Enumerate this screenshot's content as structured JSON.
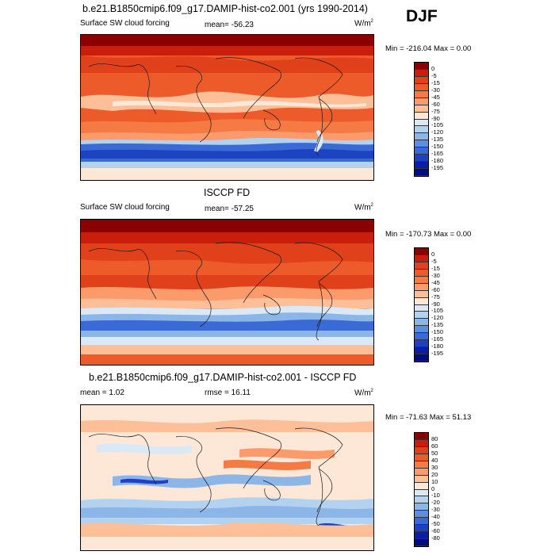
{
  "season": "DJF",
  "panels": [
    {
      "title": "b.e21.B1850cmip6.f09_g17.DAMIP-hist-co2.001 (yrs 1990-2014)",
      "left_label": "Surface SW cloud forcing",
      "center_label": "mean= -56.23",
      "units": "W/m",
      "units_sup": "2",
      "minmax": "Min = -216.04 Max =   0.00",
      "colorbar": {
        "levels": [
          "0",
          "-5",
          "-15",
          "-30",
          "-45",
          "-60",
          "-75",
          "-90",
          "-105",
          "-120",
          "-135",
          "-150",
          "-165",
          "-180",
          "-195"
        ],
        "colors": [
          "#8b0000",
          "#c81e0b",
          "#e0401a",
          "#ee5b2a",
          "#f57a44",
          "#fb9a6a",
          "#fdbf98",
          "#fde8d8",
          "#dbe9f6",
          "#b3d2f0",
          "#8cb5e8",
          "#5c8fe0",
          "#3a6ad6",
          "#1d42c2",
          "#0a1ea8",
          "#000d80"
        ]
      }
    },
    {
      "title": "ISCCP FD",
      "left_label": "Surface SW cloud forcing",
      "center_label": "mean= -57.25",
      "units": "W/m",
      "units_sup": "2",
      "minmax": "Min = -170.73 Max =   0.00",
      "colorbar": {
        "levels": [
          "0",
          "-5",
          "-15",
          "-30",
          "-45",
          "-60",
          "-75",
          "-90",
          "-105",
          "-120",
          "-135",
          "-150",
          "-165",
          "-180",
          "-195"
        ],
        "colors": [
          "#8b0000",
          "#c81e0b",
          "#e0401a",
          "#ee5b2a",
          "#f57a44",
          "#fb9a6a",
          "#fdbf98",
          "#fde8d8",
          "#dbe9f6",
          "#b3d2f0",
          "#8cb5e8",
          "#5c8fe0",
          "#3a6ad6",
          "#1d42c2",
          "#0a1ea8",
          "#000d80"
        ]
      }
    },
    {
      "title": "b.e21.B1850cmip6.f09_g17.DAMIP-hist-co2.001 - ISCCP FD",
      "left_label": "mean =   1.02",
      "center_label": "rmse =  16.11",
      "units": "W/m",
      "units_sup": "2",
      "minmax": "Min = -71.63 Max =  51.13",
      "colorbar": {
        "levels": [
          "80",
          "60",
          "50",
          "40",
          "30",
          "20",
          "10",
          "0",
          "-10",
          "-20",
          "-30",
          "-40",
          "-50",
          "-60",
          "-80"
        ],
        "colors": [
          "#8b0000",
          "#c81e0b",
          "#e0401a",
          "#ee5b2a",
          "#f57a44",
          "#fb9a6a",
          "#fdbf98",
          "#fde8d8",
          "#dbe9f6",
          "#b3d2f0",
          "#8cb5e8",
          "#5c8fe0",
          "#3a6ad6",
          "#1d42c2",
          "#0a1ea8",
          "#000d80"
        ]
      }
    }
  ],
  "chart_data": [
    {
      "type": "heatmap",
      "title": "b.e21.B1850cmip6.f09_g17.DAMIP-hist-co2.001 (yrs 1990-2014)",
      "variable": "Surface SW cloud forcing",
      "mean": -56.23,
      "min": -216.04,
      "max": 0.0,
      "units": "W/m2",
      "contour_levels": [
        0,
        -5,
        -15,
        -30,
        -45,
        -60,
        -75,
        -90,
        -105,
        -120,
        -135,
        -150,
        -165,
        -180,
        -195
      ]
    },
    {
      "type": "heatmap",
      "title": "ISCCP FD",
      "variable": "Surface SW cloud forcing",
      "mean": -57.25,
      "min": -170.73,
      "max": 0.0,
      "units": "W/m2",
      "contour_levels": [
        0,
        -5,
        -15,
        -30,
        -45,
        -60,
        -75,
        -90,
        -105,
        -120,
        -135,
        -150,
        -165,
        -180,
        -195
      ]
    },
    {
      "type": "heatmap",
      "title": "b.e21.B1850cmip6.f09_g17.DAMIP-hist-co2.001 - ISCCP FD",
      "mean": 1.02,
      "rmse": 16.11,
      "min": -71.63,
      "max": 51.13,
      "units": "W/m2",
      "contour_levels": [
        80,
        60,
        50,
        40,
        30,
        20,
        10,
        0,
        -10,
        -20,
        -30,
        -40,
        -50,
        -60,
        -80
      ]
    }
  ]
}
